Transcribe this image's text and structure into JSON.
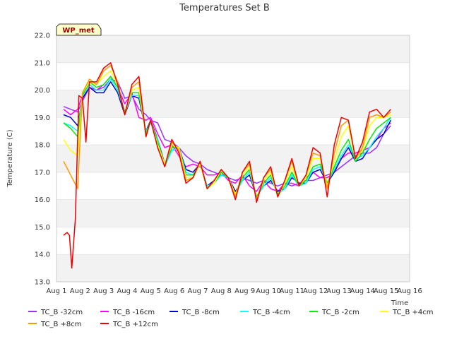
{
  "chart_data": {
    "type": "line",
    "title": "Temperatures Set B",
    "xlabel": "Time",
    "ylabel": "Temperature (C)",
    "ylim": [
      13.0,
      22.0
    ],
    "xlim": [
      1,
      16
    ],
    "yticks": [
      "13.0",
      "14.0",
      "15.0",
      "16.0",
      "17.0",
      "18.0",
      "19.0",
      "20.0",
      "21.0",
      "22.0"
    ],
    "xticks": [
      "Aug 1",
      "Aug 2",
      "Aug 3",
      "Aug 4",
      "Aug 5",
      "Aug 6",
      "Aug 7",
      "Aug 8",
      "Aug 9",
      "Aug 10",
      "Aug 11",
      "Aug 12",
      "Aug 13",
      "Aug 14",
      "Aug 15",
      "Aug 16"
    ],
    "grid": "horizontal bands",
    "site_label": "WP_met",
    "series": [
      {
        "name": "TC_B -32cm",
        "color": "#9933ff",
        "x": [
          1.3,
          1.6,
          1.9,
          2.1,
          2.4,
          2.7,
          3.0,
          3.3,
          3.6,
          3.9,
          4.2,
          4.5,
          4.8,
          5.0,
          5.3,
          5.6,
          5.9,
          6.2,
          6.5,
          6.8,
          7.1,
          7.4,
          7.7,
          8.0,
          8.3,
          8.6,
          8.9,
          9.2,
          9.5,
          9.8,
          10.1,
          10.4,
          10.7,
          11.0,
          11.3,
          11.6,
          11.9,
          12.2,
          12.5,
          12.8,
          13.1,
          13.4,
          13.7,
          14.0,
          14.3,
          14.6,
          14.9,
          15.2
        ],
        "values": [
          19.4,
          19.3,
          19.2,
          19.6,
          20.1,
          20.0,
          20.1,
          20.4,
          20.3,
          19.7,
          19.8,
          19.3,
          19.1,
          18.9,
          18.8,
          18.2,
          18.1,
          17.9,
          17.6,
          17.4,
          17.3,
          17.1,
          17.0,
          16.9,
          16.8,
          16.7,
          16.8,
          16.7,
          16.6,
          16.7,
          16.6,
          16.5,
          16.6,
          16.5,
          16.6,
          16.7,
          16.7,
          16.8,
          16.9,
          17.0,
          17.2,
          17.4,
          17.6,
          17.7,
          17.7,
          17.9,
          18.4,
          18.7
        ]
      },
      {
        "name": "TC_B -16cm",
        "color": "#ff00ff",
        "x": [
          1.3,
          1.6,
          1.9,
          2.1,
          2.4,
          2.7,
          3.0,
          3.3,
          3.6,
          3.9,
          4.2,
          4.5,
          4.8,
          5.0,
          5.3,
          5.6,
          5.9,
          6.2,
          6.5,
          6.8,
          7.1,
          7.4,
          7.7,
          8.0,
          8.3,
          8.6,
          8.9,
          9.2,
          9.5,
          9.8,
          10.1,
          10.4,
          10.7,
          11.0,
          11.3,
          11.6,
          11.9,
          12.2,
          12.5,
          12.8,
          13.1,
          13.4,
          13.7,
          14.0,
          14.3,
          14.6,
          14.9,
          15.2
        ],
        "values": [
          19.3,
          19.1,
          19.3,
          19.8,
          20.2,
          20.0,
          20.2,
          20.5,
          20.1,
          19.5,
          19.9,
          19.0,
          18.9,
          19.0,
          18.4,
          17.9,
          18.0,
          17.6,
          17.2,
          17.3,
          17.2,
          16.9,
          16.9,
          17.0,
          16.7,
          16.6,
          16.9,
          16.5,
          16.3,
          16.7,
          16.4,
          16.3,
          16.6,
          16.6,
          16.5,
          16.8,
          17.0,
          16.8,
          16.8,
          17.0,
          17.5,
          17.7,
          17.7,
          17.8,
          17.9,
          18.2,
          18.6,
          18.8
        ]
      },
      {
        "name": "TC_B -8cm",
        "color": "#0000cc",
        "x": [
          1.3,
          1.6,
          1.9,
          2.1,
          2.4,
          2.7,
          3.0,
          3.3,
          3.6,
          3.9,
          4.2,
          4.5,
          4.8,
          5.0,
          5.3,
          5.6,
          5.9,
          6.2,
          6.5,
          6.8,
          7.1,
          7.4,
          7.7,
          8.0,
          8.3,
          8.6,
          8.9,
          9.2,
          9.5,
          9.8,
          10.1,
          10.4,
          10.7,
          11.0,
          11.3,
          11.6,
          11.9,
          12.2,
          12.5,
          12.8,
          13.1,
          13.4,
          13.7,
          14.0,
          14.3,
          14.6,
          14.9,
          15.2
        ],
        "values": [
          19.1,
          19.0,
          18.7,
          19.7,
          20.1,
          19.9,
          19.9,
          20.3,
          19.9,
          19.1,
          19.8,
          19.7,
          18.5,
          18.9,
          18.2,
          17.3,
          17.8,
          17.9,
          17.1,
          17.0,
          17.3,
          16.5,
          16.7,
          16.9,
          16.8,
          16.3,
          16.7,
          16.9,
          16.1,
          16.5,
          16.7,
          16.3,
          16.4,
          16.8,
          16.6,
          16.6,
          17.0,
          17.1,
          16.6,
          17.0,
          17.5,
          17.9,
          17.4,
          17.5,
          17.9,
          18.2,
          18.4,
          18.9
        ]
      },
      {
        "name": "TC_B -4cm",
        "color": "#00ffff",
        "x": [
          1.3,
          1.6,
          1.9,
          2.1,
          2.4,
          2.7,
          3.0,
          3.3,
          3.6,
          3.9,
          4.2,
          4.5,
          4.8,
          5.0,
          5.3,
          5.6,
          5.9,
          6.2,
          6.5,
          6.8,
          7.1,
          7.4,
          7.7,
          8.0,
          8.3,
          8.6,
          8.9,
          9.2,
          9.5,
          9.8,
          10.1,
          10.4,
          10.7,
          11.0,
          11.3,
          11.6,
          11.9,
          12.2,
          12.5,
          12.8,
          13.1,
          13.4,
          13.7,
          14.0,
          14.3,
          14.6,
          14.9,
          15.2
        ],
        "values": [
          18.8,
          18.7,
          18.5,
          19.8,
          20.2,
          20.0,
          20.0,
          20.4,
          20.0,
          19.2,
          19.8,
          19.8,
          18.5,
          18.8,
          18.2,
          17.2,
          17.8,
          17.9,
          17.0,
          16.9,
          17.3,
          16.5,
          16.6,
          16.9,
          16.8,
          16.2,
          16.7,
          17.0,
          16.1,
          16.5,
          16.8,
          16.2,
          16.4,
          16.9,
          16.5,
          16.6,
          17.1,
          17.2,
          16.6,
          17.1,
          17.6,
          18.0,
          17.5,
          17.6,
          17.9,
          18.3,
          18.6,
          19.0
        ]
      },
      {
        "name": "TC_B -2cm",
        "color": "#00ee00",
        "x": [
          1.3,
          1.6,
          1.9,
          2.1,
          2.4,
          2.7,
          3.0,
          3.3,
          3.6,
          3.9,
          4.2,
          4.5,
          4.8,
          5.0,
          5.3,
          5.6,
          5.9,
          6.2,
          6.5,
          6.8,
          7.1,
          7.4,
          7.7,
          8.0,
          8.3,
          8.6,
          8.9,
          9.2,
          9.5,
          9.8,
          10.1,
          10.4,
          10.7,
          11.0,
          11.3,
          11.6,
          11.9,
          12.2,
          12.5,
          12.8,
          13.1,
          13.4,
          13.7,
          14.0,
          14.3,
          14.6,
          14.9,
          15.2
        ],
        "values": [
          18.8,
          18.6,
          18.3,
          19.8,
          20.3,
          20.1,
          20.2,
          20.5,
          20.1,
          19.2,
          19.9,
          19.9,
          18.4,
          18.9,
          18.1,
          17.3,
          17.9,
          17.9,
          16.9,
          16.9,
          17.3,
          16.4,
          16.6,
          17.0,
          16.8,
          16.2,
          16.8,
          17.1,
          16.1,
          16.6,
          16.9,
          16.2,
          16.5,
          17.0,
          16.5,
          16.7,
          17.2,
          17.3,
          16.6,
          17.2,
          17.8,
          18.2,
          17.4,
          17.7,
          18.2,
          18.6,
          18.8,
          19.0
        ]
      },
      {
        "name": "TC_B +4cm",
        "color": "#ffff00",
        "x": [
          1.3,
          1.6,
          1.9,
          2.1,
          2.4,
          2.7,
          3.0,
          3.3,
          3.6,
          3.9,
          4.2,
          4.5,
          4.8,
          5.0,
          5.3,
          5.6,
          5.9,
          6.2,
          6.5,
          6.8,
          7.1,
          7.4,
          7.7,
          8.0,
          8.3,
          8.6,
          8.9,
          9.2,
          9.5,
          9.8,
          10.1,
          10.4,
          10.7,
          11.0,
          11.3,
          11.6,
          11.9,
          12.2,
          12.5,
          12.8,
          13.1,
          13.4,
          13.7,
          14.0,
          14.3,
          14.6,
          14.9,
          15.2
        ],
        "values": [
          18.2,
          17.8,
          17.6,
          19.9,
          20.3,
          20.2,
          20.5,
          20.7,
          20.2,
          19.1,
          20.0,
          20.1,
          18.3,
          18.9,
          18.0,
          17.3,
          18.0,
          17.9,
          16.8,
          16.8,
          17.3,
          16.4,
          16.6,
          17.1,
          16.8,
          16.2,
          16.9,
          17.2,
          16.0,
          16.7,
          17.0,
          16.1,
          16.6,
          17.2,
          16.5,
          16.8,
          17.5,
          17.5,
          16.5,
          17.4,
          18.3,
          18.7,
          17.5,
          17.8,
          18.7,
          19.0,
          19.0,
          19.1
        ]
      },
      {
        "name": "TC_B +8cm",
        "color": "#ff9900",
        "x": [
          1.3,
          1.6,
          1.9,
          2.1,
          2.4,
          2.7,
          3.0,
          3.3,
          3.6,
          3.9,
          4.2,
          4.5,
          4.8,
          5.0,
          5.3,
          5.6,
          5.9,
          6.2,
          6.5,
          6.8,
          7.1,
          7.4,
          7.7,
          8.0,
          8.3,
          8.6,
          8.9,
          9.2,
          9.5,
          9.8,
          10.1,
          10.4,
          10.7,
          11.0,
          11.3,
          11.6,
          11.9,
          12.2,
          12.5,
          12.8,
          13.1,
          13.4,
          13.7,
          14.0,
          14.3,
          14.6,
          14.9,
          15.2
        ],
        "values": [
          17.4,
          16.9,
          16.4,
          19.9,
          20.4,
          20.2,
          20.7,
          20.9,
          20.3,
          19.1,
          20.1,
          20.3,
          18.3,
          18.9,
          17.9,
          17.2,
          18.1,
          17.8,
          16.7,
          16.8,
          17.4,
          16.4,
          16.7,
          17.1,
          16.8,
          16.1,
          17.0,
          17.3,
          16.0,
          16.8,
          17.1,
          16.1,
          16.7,
          17.4,
          16.5,
          16.9,
          17.7,
          17.6,
          16.4,
          17.7,
          18.7,
          18.9,
          17.5,
          17.9,
          19.0,
          19.1,
          19.0,
          19.2
        ]
      },
      {
        "name": "TC_B +12cm",
        "color": "#ee0000",
        "x": [
          1.3,
          1.45,
          1.55,
          1.65,
          1.8,
          1.95,
          2.1,
          2.25,
          2.4,
          2.7,
          3.0,
          3.3,
          3.6,
          3.9,
          4.2,
          4.5,
          4.8,
          5.0,
          5.3,
          5.6,
          5.9,
          6.2,
          6.5,
          6.8,
          7.1,
          7.4,
          7.7,
          8.0,
          8.3,
          8.6,
          8.9,
          9.2,
          9.5,
          9.8,
          10.1,
          10.4,
          10.7,
          11.0,
          11.3,
          11.6,
          11.9,
          12.2,
          12.5,
          12.8,
          13.1,
          13.4,
          13.7,
          14.0,
          14.3,
          14.6,
          14.9,
          15.2
        ],
        "values": [
          14.7,
          14.8,
          14.7,
          13.5,
          15.3,
          19.8,
          19.7,
          18.1,
          20.3,
          20.3,
          20.8,
          21.0,
          20.2,
          19.1,
          20.2,
          20.5,
          18.3,
          18.9,
          17.9,
          17.2,
          18.2,
          17.7,
          16.6,
          16.8,
          17.4,
          16.4,
          16.7,
          17.1,
          16.8,
          16.0,
          17.0,
          17.4,
          15.9,
          16.8,
          17.2,
          16.1,
          16.7,
          17.5,
          16.5,
          16.9,
          17.9,
          17.7,
          16.1,
          18.0,
          19.0,
          18.9,
          17.5,
          18.1,
          19.2,
          19.3,
          19.0,
          19.3
        ]
      }
    ]
  }
}
